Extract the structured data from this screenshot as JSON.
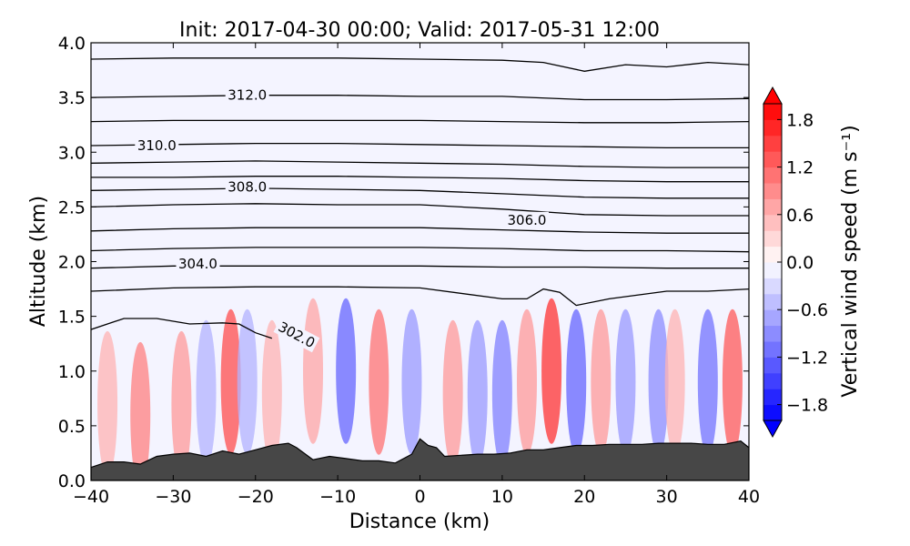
{
  "chart_data": {
    "type": "heatmap",
    "title": "Init: 2017-04-30 00:00; Valid: 2017-05-31 12:00",
    "xlabel": "Distance (km)",
    "ylabel": "Altitude (km)",
    "xlim": [
      -40,
      40
    ],
    "ylim": [
      0.0,
      4.0
    ],
    "xticks": [
      -40,
      -30,
      -20,
      -10,
      0,
      10,
      20,
      30,
      40
    ],
    "xtick_labels": [
      "−40",
      "−30",
      "−20",
      "−10",
      "0",
      "10",
      "20",
      "30",
      "40"
    ],
    "yticks": [
      0.0,
      0.5,
      1.0,
      1.5,
      2.0,
      2.5,
      3.0,
      3.5,
      4.0
    ],
    "ytick_labels": [
      "0.0",
      "0.5",
      "1.0",
      "1.5",
      "2.0",
      "2.5",
      "3.0",
      "3.5",
      "4.0"
    ],
    "grid": false,
    "colorbar": {
      "label": "Vertical wind speed (m s⁻¹)",
      "range": [
        -2.0,
        2.0
      ],
      "ticks": [
        -1.8,
        -1.2,
        -0.6,
        0.0,
        0.6,
        1.2,
        1.8
      ],
      "tick_labels": [
        "−1.8",
        "−1.2",
        "−0.6",
        "0.0",
        "0.6",
        "1.2",
        "1.8"
      ],
      "colormap": "bwr",
      "extend": "both",
      "low_color": "#0000ff",
      "mid_color": "#ffffff",
      "high_color": "#ff0000"
    },
    "terrain_color": "#474747",
    "terrain": {
      "x": [
        -40,
        -38,
        -36,
        -34,
        -32,
        -30,
        -28,
        -26,
        -24,
        -22,
        -20,
        -18,
        -16,
        -15,
        -13,
        -11,
        -9,
        -7,
        -5,
        -3,
        -1,
        0,
        1,
        2,
        3,
        5,
        7,
        9,
        11,
        13,
        15,
        17,
        19,
        21,
        23,
        25,
        27,
        29,
        31,
        33,
        35,
        37,
        39,
        40
      ],
      "y": [
        0.12,
        0.17,
        0.17,
        0.15,
        0.22,
        0.24,
        0.25,
        0.22,
        0.27,
        0.24,
        0.28,
        0.32,
        0.34,
        0.3,
        0.19,
        0.22,
        0.2,
        0.18,
        0.18,
        0.16,
        0.24,
        0.38,
        0.32,
        0.3,
        0.22,
        0.23,
        0.24,
        0.24,
        0.25,
        0.28,
        0.28,
        0.3,
        0.32,
        0.32,
        0.33,
        0.33,
        0.33,
        0.34,
        0.34,
        0.34,
        0.33,
        0.33,
        0.36,
        0.3
      ]
    },
    "vertical_wind_cells": [
      {
        "x": -38,
        "y": 0.7,
        "w": 0.6
      },
      {
        "x": -34,
        "y": 0.6,
        "w": 1.0
      },
      {
        "x": -29,
        "y": 0.7,
        "w": 0.8
      },
      {
        "x": -26,
        "y": 0.8,
        "w": -0.6
      },
      {
        "x": -23,
        "y": 0.9,
        "w": 1.4
      },
      {
        "x": -21,
        "y": 0.9,
        "w": -0.6
      },
      {
        "x": -18,
        "y": 0.8,
        "w": 0.6
      },
      {
        "x": -13,
        "y": 1.0,
        "w": 0.7
      },
      {
        "x": -9,
        "y": 1.0,
        "w": -1.2
      },
      {
        "x": -5,
        "y": 0.9,
        "w": 1.1
      },
      {
        "x": -1,
        "y": 0.9,
        "w": -0.8
      },
      {
        "x": 4,
        "y": 0.8,
        "w": 0.8
      },
      {
        "x": 7,
        "y": 0.8,
        "w": -0.8
      },
      {
        "x": 10,
        "y": 0.8,
        "w": -1.0
      },
      {
        "x": 13,
        "y": 0.9,
        "w": 0.8
      },
      {
        "x": 16,
        "y": 1.0,
        "w": 1.6
      },
      {
        "x": 19,
        "y": 0.9,
        "w": -1.2
      },
      {
        "x": 22,
        "y": 0.9,
        "w": 0.8
      },
      {
        "x": 25,
        "y": 0.9,
        "w": -0.8
      },
      {
        "x": 29,
        "y": 0.9,
        "w": -0.9
      },
      {
        "x": 31,
        "y": 0.9,
        "w": 0.6
      },
      {
        "x": 35,
        "y": 0.9,
        "w": -1.1
      },
      {
        "x": 38,
        "y": 0.9,
        "w": 1.3
      }
    ],
    "isentropes": [
      {
        "label": "302.0",
        "labeled": true,
        "label_x": -15,
        "label_y": 1.33,
        "label_angle": 28,
        "x": [
          -40,
          -36,
          -32,
          -28,
          -24,
          -22,
          -20,
          -18
        ],
        "y": [
          1.38,
          1.48,
          1.48,
          1.43,
          1.44,
          1.43,
          1.35,
          1.3
        ]
      },
      {
        "label": "",
        "labeled": false,
        "x": [
          -40,
          -30,
          -20,
          -10,
          0,
          10,
          13,
          15,
          17,
          19,
          23,
          30,
          35,
          40
        ],
        "y": [
          1.73,
          1.76,
          1.77,
          1.77,
          1.76,
          1.66,
          1.66,
          1.75,
          1.72,
          1.6,
          1.66,
          1.73,
          1.73,
          1.75
        ]
      },
      {
        "label": "",
        "labeled": false,
        "x": [
          -40,
          -30,
          -20,
          -10,
          0,
          10,
          20,
          30,
          40
        ],
        "y": [
          1.94,
          1.96,
          1.96,
          1.96,
          1.96,
          1.95,
          1.95,
          1.94,
          1.94
        ]
      },
      {
        "label": "304.0",
        "labeled": true,
        "label_x": -27,
        "label_y": 1.98,
        "label_angle": 0,
        "x": [
          -40,
          -30,
          -20,
          -10,
          0,
          10,
          20,
          30,
          40
        ],
        "y": [
          2.1,
          2.12,
          2.13,
          2.13,
          2.13,
          2.12,
          2.1,
          2.1,
          2.09
        ]
      },
      {
        "label": "",
        "labeled": false,
        "x": [
          -40,
          -30,
          -20,
          -10,
          0,
          10,
          20,
          30,
          40
        ],
        "y": [
          2.28,
          2.3,
          2.31,
          2.31,
          2.31,
          2.29,
          2.27,
          2.26,
          2.26
        ]
      },
      {
        "label": "306.0",
        "labeled": true,
        "label_x": 13,
        "label_y": 2.38,
        "label_angle": 0,
        "x": [
          -40,
          -30,
          -20,
          -10,
          0,
          10,
          20,
          30,
          40
        ],
        "y": [
          2.5,
          2.52,
          2.53,
          2.52,
          2.52,
          2.48,
          2.43,
          2.42,
          2.42
        ]
      },
      {
        "label": "",
        "labeled": false,
        "x": [
          -40,
          -30,
          -20,
          -10,
          0,
          10,
          20,
          30,
          40
        ],
        "y": [
          2.65,
          2.66,
          2.67,
          2.66,
          2.65,
          2.62,
          2.59,
          2.58,
          2.58
        ]
      },
      {
        "label": "308.0",
        "labeled": true,
        "label_x": -21,
        "label_y": 2.68,
        "label_angle": 0,
        "x": [
          -40,
          -30,
          -20,
          -10,
          0,
          10,
          20,
          30,
          40
        ],
        "y": [
          2.77,
          2.77,
          2.78,
          2.78,
          2.77,
          2.76,
          2.74,
          2.73,
          2.73
        ]
      },
      {
        "label": "",
        "labeled": false,
        "x": [
          -40,
          -30,
          -20,
          -10,
          0,
          10,
          20,
          30,
          40
        ],
        "y": [
          2.9,
          2.91,
          2.92,
          2.91,
          2.9,
          2.89,
          2.87,
          2.86,
          2.86
        ]
      },
      {
        "label": "310.0",
        "labeled": true,
        "label_x": -32,
        "label_y": 3.06,
        "label_angle": 0,
        "x": [
          -40,
          -30,
          -20,
          -10,
          0,
          10,
          20,
          30,
          40
        ],
        "y": [
          3.06,
          3.07,
          3.08,
          3.08,
          3.07,
          3.06,
          3.05,
          3.04,
          3.04
        ]
      },
      {
        "label": "",
        "labeled": false,
        "x": [
          -40,
          -30,
          -20,
          -10,
          0,
          10,
          20,
          30,
          40
        ],
        "y": [
          3.28,
          3.29,
          3.29,
          3.29,
          3.29,
          3.28,
          3.27,
          3.27,
          3.28
        ]
      },
      {
        "label": "312.0",
        "labeled": true,
        "label_x": -21,
        "label_y": 3.52,
        "label_angle": 0,
        "x": [
          -40,
          -30,
          -20,
          -10,
          0,
          10,
          20,
          30,
          40
        ],
        "y": [
          3.5,
          3.51,
          3.52,
          3.52,
          3.51,
          3.51,
          3.48,
          3.48,
          3.49
        ]
      },
      {
        "label": "",
        "labeled": false,
        "x": [
          -40,
          -30,
          -20,
          -10,
          0,
          10,
          15,
          20,
          25,
          30,
          35,
          40
        ],
        "y": [
          3.85,
          3.86,
          3.86,
          3.86,
          3.85,
          3.84,
          3.82,
          3.74,
          3.8,
          3.78,
          3.82,
          3.8
        ]
      }
    ]
  }
}
